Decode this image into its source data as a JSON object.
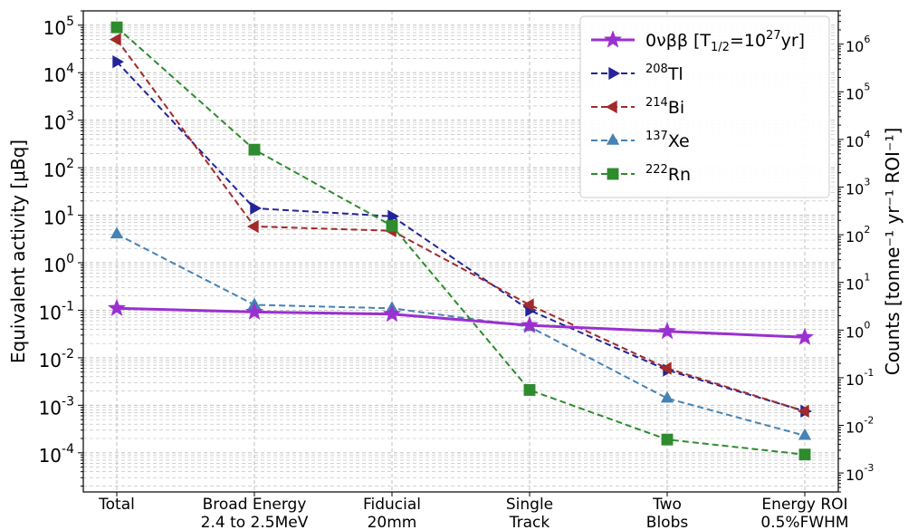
{
  "chart_data": {
    "type": "line",
    "categories": [
      [
        "Total"
      ],
      [
        "Broad Energy",
        "2.4 to 2.5MeV"
      ],
      [
        "Fiducial",
        "20mm"
      ],
      [
        "Single",
        "Track"
      ],
      [
        "Two",
        "Blobs"
      ],
      [
        "Energy ROI",
        "0.5%FWHM"
      ]
    ],
    "ylabel_left": "Equivalent activity [μBq]",
    "ylabel_right": "Counts [tonne⁻¹ yr⁻¹ ROI⁻¹]",
    "yscale": "log",
    "ylim_left": [
      1.5e-05,
      200000.0
    ],
    "ylim_right": [
      0.0004,
      5000000.0
    ],
    "left_ticks": [
      "10",
      "10",
      "10",
      "10",
      "10",
      "10",
      "10",
      "10",
      "10",
      "10"
    ],
    "left_tick_exps": [
      "-4",
      "-3",
      "-2",
      "-1",
      "0",
      "1",
      "2",
      "3",
      "4",
      "5"
    ],
    "right_ticks": [
      "10",
      "10",
      "10",
      "10",
      "10",
      "10",
      "10",
      "10",
      "10",
      "10"
    ],
    "right_tick_exps": [
      "-3",
      "-2",
      "-1",
      "0",
      "1",
      "2",
      "3",
      "4",
      "5",
      "6"
    ],
    "grid": true,
    "legend_position": "top-right",
    "series": [
      {
        "name": "0νββ [T1/2=10²⁷yr]",
        "legend_main": "0νββ [T",
        "legend_sub": "1/2",
        "legend_mid": "=10",
        "legend_sup": "27",
        "legend_end": "yr]",
        "color": "#9b30d0",
        "marker": "star",
        "dashed": false,
        "values": [
          0.11,
          0.092,
          0.083,
          0.048,
          0.036,
          0.027
        ]
      },
      {
        "name": "208Tl",
        "legend_sup": "208",
        "legend_main": "Tl",
        "color": "#23239a",
        "marker": "triangle-right",
        "dashed": true,
        "values": [
          17000,
          14,
          9.5,
          0.1,
          0.0055,
          0.00075
        ]
      },
      {
        "name": "214Bi",
        "legend_sup": "214",
        "legend_main": "Bi",
        "color": "#a12a2a",
        "marker": "triangle-left",
        "dashed": true,
        "values": [
          50000,
          5.8,
          4.7,
          0.13,
          0.006,
          0.00075
        ]
      },
      {
        "name": "137Xe",
        "legend_sup": "137",
        "legend_main": "Xe",
        "color": "#4682b4",
        "marker": "triangle-up",
        "dashed": true,
        "values": [
          4.0,
          0.13,
          0.11,
          0.045,
          0.0014,
          0.00023
        ]
      },
      {
        "name": "222Rn",
        "legend_sup": "222",
        "legend_main": "Rn",
        "color": "#2e8b2e",
        "marker": "square",
        "dashed": true,
        "values": [
          90000,
          240,
          6.0,
          0.0021,
          0.00019,
          9.2e-05
        ]
      }
    ]
  }
}
